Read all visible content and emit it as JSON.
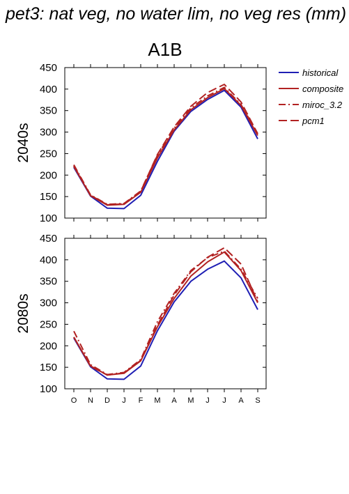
{
  "title": "pet3: nat veg, no water lim, no veg res (mm)",
  "scenario": "A1B",
  "legend": [
    {
      "label": "historical",
      "color": "#1f1fb4",
      "dash": "solid"
    },
    {
      "label": "composite",
      "color": "#b22222",
      "dash": "solid"
    },
    {
      "label": "miroc_3.2",
      "color": "#b22222",
      "dash": "dashdot"
    },
    {
      "label": "pcm1",
      "color": "#b22222",
      "dash": "dashed"
    }
  ],
  "chart_data": [
    {
      "type": "line",
      "row_label": "2040s",
      "categories": [
        "O",
        "N",
        "D",
        "J",
        "F",
        "M",
        "A",
        "M",
        "J",
        "J",
        "A",
        "S"
      ],
      "ylim": [
        100,
        450
      ],
      "yticks": [
        100,
        150,
        200,
        250,
        300,
        350,
        400,
        450
      ],
      "series": [
        {
          "name": "historical",
          "values": [
            218,
            151,
            123,
            122,
            153,
            232,
            302,
            348,
            376,
            397,
            358,
            284
          ]
        },
        {
          "name": "composite",
          "values": [
            220,
            152,
            130,
            132,
            160,
            240,
            305,
            352,
            380,
            401,
            362,
            292
          ]
        },
        {
          "name": "miroc_3.2",
          "values": [
            224,
            154,
            132,
            134,
            163,
            246,
            309,
            356,
            384,
            404,
            364,
            296
          ]
        },
        {
          "name": "pcm1",
          "values": [
            222,
            153,
            131,
            133,
            162,
            248,
            312,
            360,
            392,
            411,
            370,
            296
          ]
        }
      ]
    },
    {
      "type": "line",
      "row_label": "2080s",
      "categories": [
        "O",
        "N",
        "D",
        "J",
        "F",
        "M",
        "A",
        "M",
        "J",
        "J",
        "A",
        "S"
      ],
      "ylim": [
        100,
        450
      ],
      "yticks": [
        100,
        150,
        200,
        250,
        300,
        350,
        400,
        450
      ],
      "series": [
        {
          "name": "historical",
          "values": [
            218,
            151,
            123,
            122,
            153,
            235,
            302,
            350,
            378,
            397,
            358,
            284
          ]
        },
        {
          "name": "composite",
          "values": [
            220,
            153,
            132,
            136,
            165,
            244,
            310,
            362,
            395,
            418,
            375,
            300
          ]
        },
        {
          "name": "miroc_3.2",
          "values": [
            234,
            156,
            133,
            138,
            168,
            256,
            322,
            375,
            405,
            420,
            378,
            310
          ]
        },
        {
          "name": "pcm1",
          "values": [
            220,
            152,
            132,
            137,
            166,
            248,
            318,
            372,
            406,
            428,
            390,
            302
          ]
        }
      ]
    }
  ]
}
